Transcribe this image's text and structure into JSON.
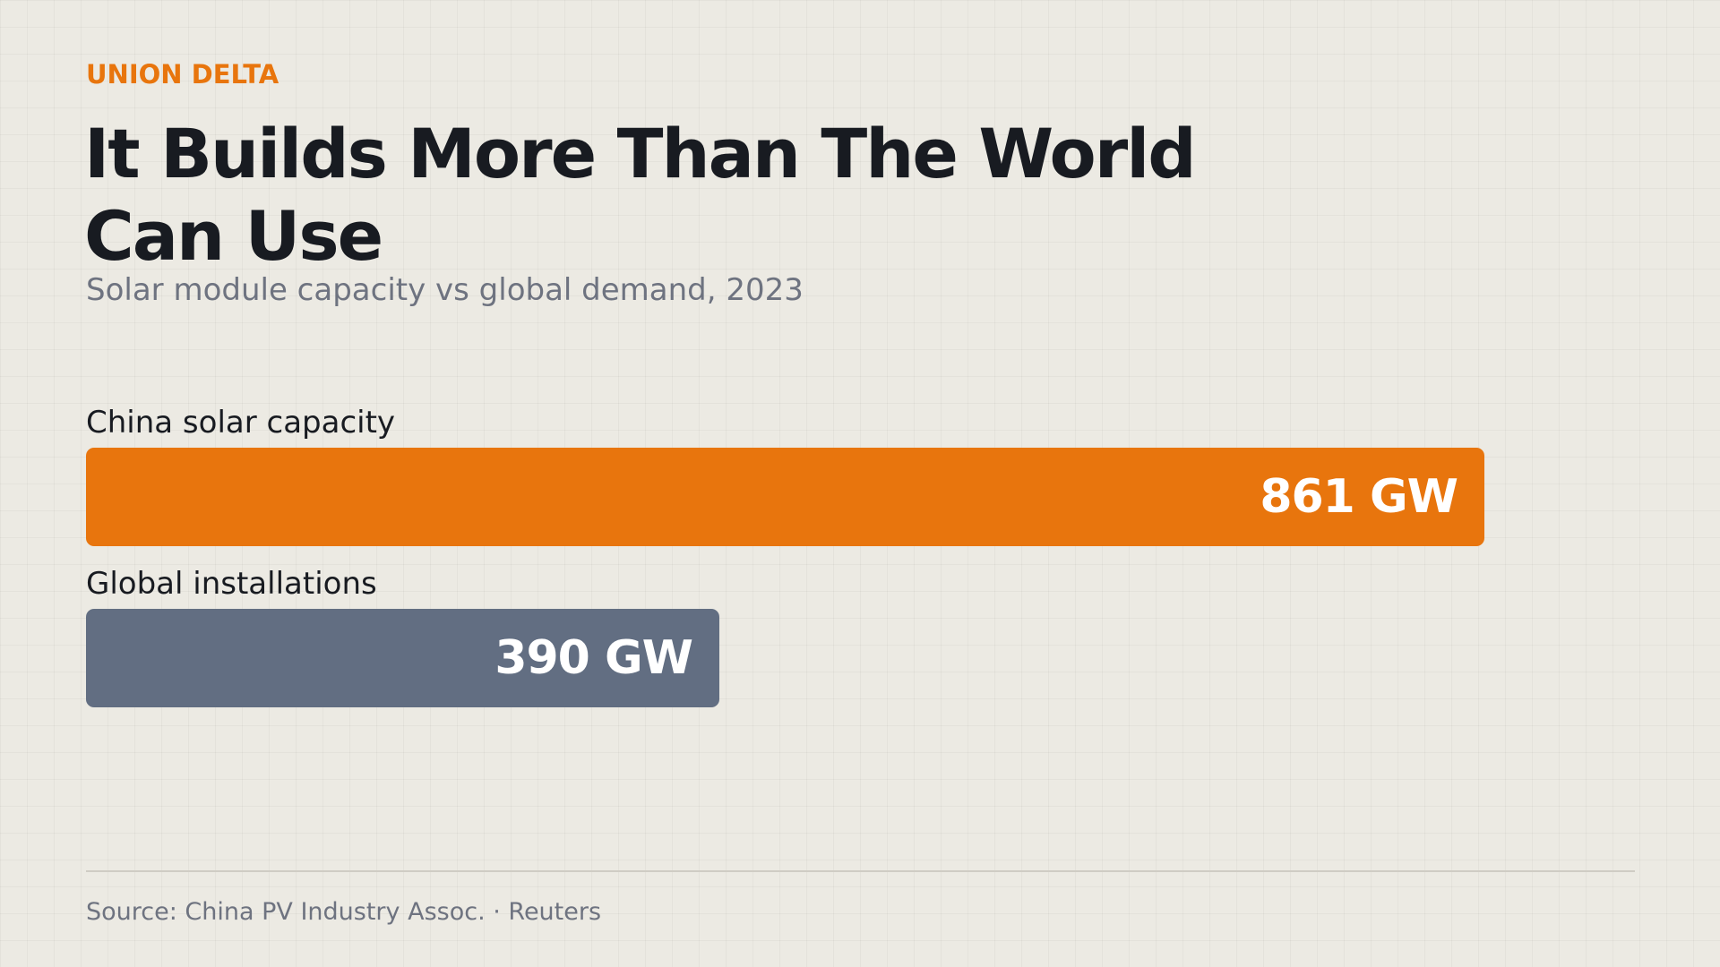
{
  "brand": "UNION DELTA",
  "title": "It Builds More Than The World Can Use",
  "subtitle": "Solar module capacity vs global demand, 2023",
  "source": "Source: China PV Industry Assoc. · Reuters",
  "colors": {
    "accent": "#e8750d",
    "secondary": "#626e82",
    "background": "#eceae3",
    "text": "#181b21",
    "muted": "#6e7380"
  },
  "chart_data": {
    "type": "bar",
    "orientation": "horizontal",
    "title": "It Builds More Than The World Can Use",
    "subtitle": "Solar module capacity vs global demand, 2023",
    "unit": "GW",
    "categories": [
      "China solar capacity",
      "Global installations"
    ],
    "values": [
      861,
      390
    ],
    "value_labels": [
      "861 GW",
      "390 GW"
    ],
    "colors": [
      "#e8750d",
      "#626e82"
    ],
    "xlim": [
      0,
      861
    ],
    "grid": false,
    "legend": "none"
  }
}
